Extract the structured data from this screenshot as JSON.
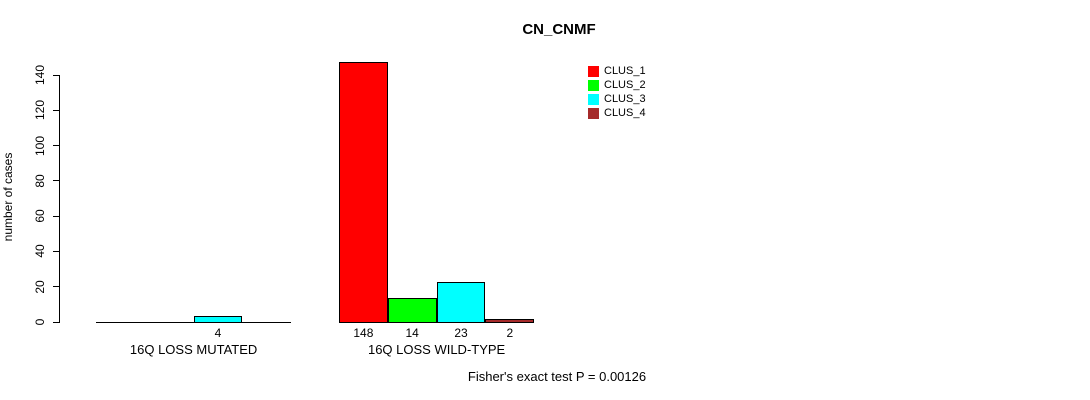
{
  "chart_data": {
    "type": "bar",
    "title": "CN_CNMF",
    "ylabel": "number of cases",
    "xlabel": "",
    "categories": [
      "16Q LOSS MUTATED",
      "16Q LOSS WILD-TYPE"
    ],
    "series": [
      {
        "name": "CLUS_1",
        "color": "#FF0000",
        "values": [
          0,
          148
        ]
      },
      {
        "name": "CLUS_2",
        "color": "#00FF00",
        "values": [
          0,
          14
        ]
      },
      {
        "name": "CLUS_3",
        "color": "#00FFFF",
        "values": [
          4,
          23
        ]
      },
      {
        "name": "CLUS_4",
        "color": "#A52A2A",
        "values": [
          0,
          2
        ]
      }
    ],
    "bar_value_labels": [
      "4",
      "148",
      "14",
      "23",
      "2"
    ],
    "value_label_rule": "shown under each nonzero bar",
    "yticks": [
      0,
      20,
      40,
      60,
      80,
      100,
      120,
      140
    ],
    "ylim": [
      0,
      140
    ],
    "grid": false,
    "legend_position": "top-right",
    "legend_entries": [
      "CLUS_1",
      "CLUS_2",
      "CLUS_3",
      "CLUS_4"
    ],
    "annotation": "Fisher's exact test P = 0.00126"
  },
  "colors": {
    "axis": "#000000",
    "background": "#ffffff",
    "clus_1": "#FF0000",
    "clus_2": "#00FF00",
    "clus_3": "#00FFFF",
    "clus_4": "#A52A2A"
  }
}
